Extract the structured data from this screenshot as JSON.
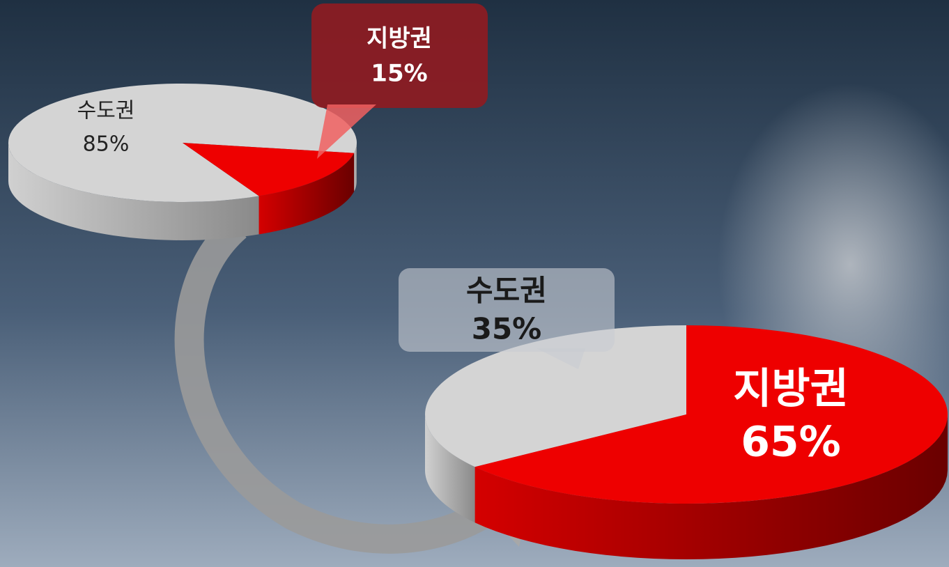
{
  "chart_data": [
    {
      "type": "pie",
      "categories": [
        "수도권",
        "지방권"
      ],
      "values": [
        85,
        15
      ],
      "value_labels": [
        "85%",
        "15%"
      ],
      "colors": [
        "#d4d4d4",
        "#ee0000"
      ]
    },
    {
      "type": "pie",
      "categories": [
        "수도권",
        "지방권"
      ],
      "values": [
        35,
        65
      ],
      "value_labels": [
        "35%",
        "65%"
      ],
      "colors": [
        "#d4d4d4",
        "#ee0000"
      ]
    }
  ]
}
